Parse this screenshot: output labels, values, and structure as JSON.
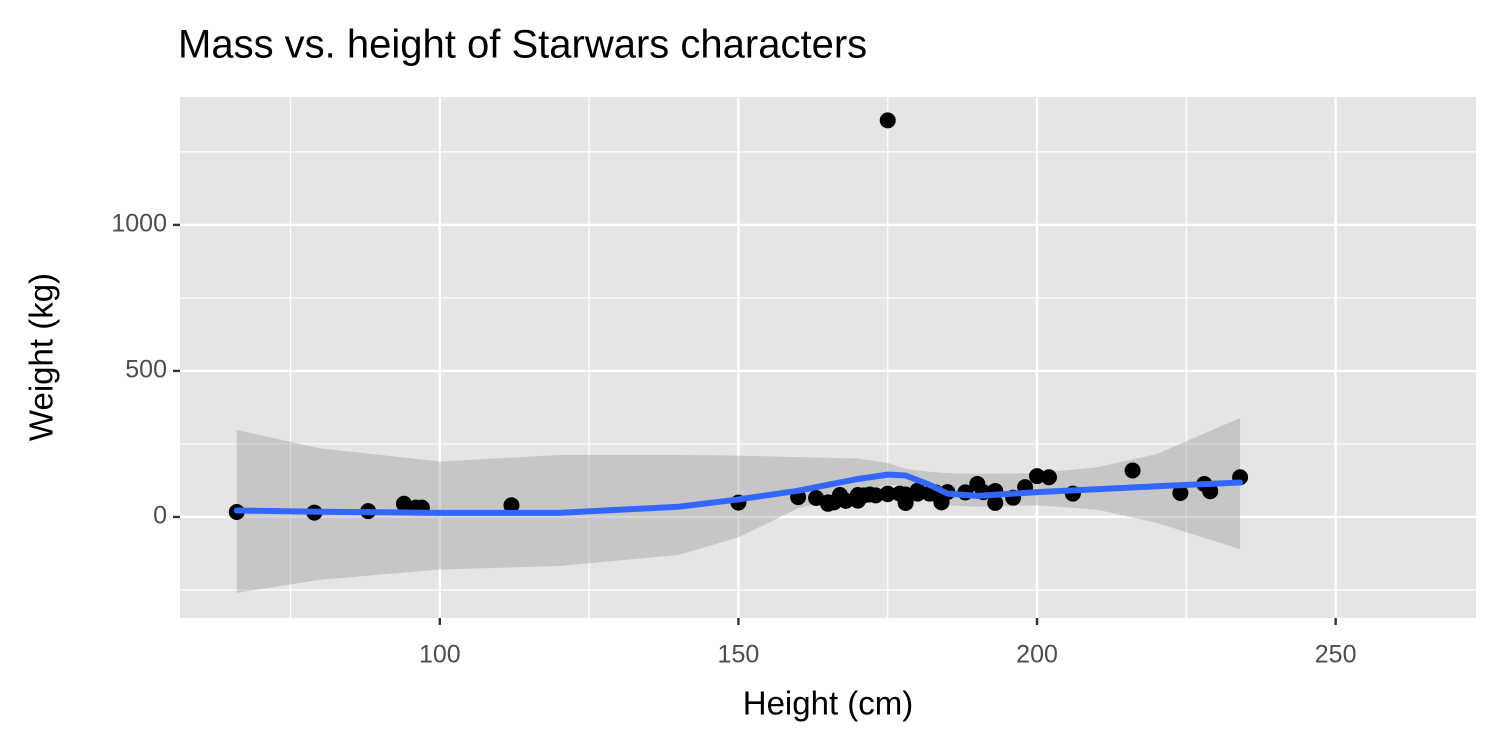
{
  "chart_data": {
    "type": "scatter",
    "title": "Mass vs. height of Starwars characters",
    "x_label": "Height (cm)",
    "y_label": "Weight (kg)",
    "xlim": [
      56.5,
      273.5
    ],
    "ylim": [
      -346,
      1438
    ],
    "xticks": [
      100,
      150,
      200,
      250
    ],
    "yticks": [
      0,
      500,
      1000
    ],
    "x_minor": [
      75,
      125,
      175,
      225
    ],
    "y_minor": [
      -250,
      250,
      750,
      1250
    ],
    "grid": true,
    "points": {
      "color": "#000000",
      "x": [
        66,
        79,
        88,
        94,
        96,
        97,
        112,
        150,
        160,
        163,
        165,
        165,
        166,
        167,
        168,
        170,
        170,
        171,
        172,
        173,
        175,
        175,
        175,
        177,
        178,
        178,
        178,
        180,
        180,
        182,
        183,
        183,
        184,
        185,
        188,
        190,
        191,
        193,
        193,
        196,
        198,
        200,
        202,
        206,
        216,
        224,
        228,
        229,
        234
      ],
      "values": [
        17,
        15,
        20,
        45,
        32,
        32,
        40,
        49,
        68,
        65,
        45,
        50,
        50,
        75,
        55,
        75,
        56,
        74,
        77,
        74,
        80,
        78,
        1358,
        80,
        55,
        48,
        77,
        80,
        90,
        80,
        84,
        79,
        50,
        85,
        84,
        113,
        85,
        48,
        89,
        66,
        102,
        140,
        136,
        80,
        159,
        82,
        113,
        88,
        136
      ]
    },
    "smooth": {
      "color": "#3366ff",
      "band_color": "#999999",
      "x": [
        66,
        80,
        100,
        120,
        140,
        150,
        160,
        170,
        175,
        178,
        182,
        185,
        190,
        200,
        210,
        220,
        234
      ],
      "values": [
        22,
        18,
        14,
        14,
        35,
        60,
        90,
        130,
        145,
        142,
        110,
        80,
        72,
        85,
        95,
        105,
        118
      ],
      "upper": [
        298,
        235,
        190,
        212,
        212,
        210,
        205,
        200,
        185,
        165,
        155,
        150,
        148,
        150,
        170,
        215,
        339
      ],
      "lower": [
        -260,
        -215,
        -180,
        -168,
        -130,
        -70,
        30,
        80,
        110,
        105,
        70,
        40,
        35,
        40,
        25,
        -20,
        -110
      ]
    }
  }
}
